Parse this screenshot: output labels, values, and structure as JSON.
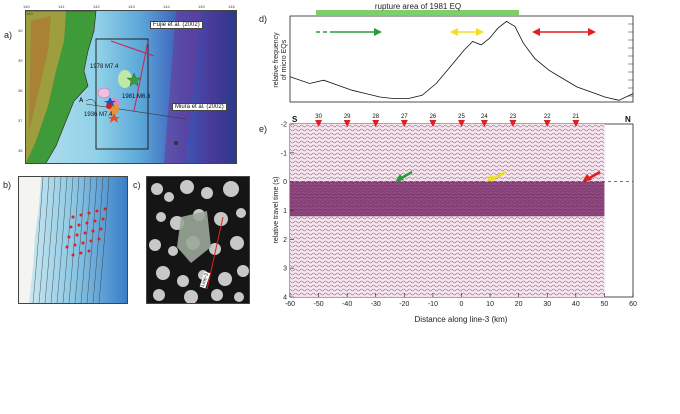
{
  "panels": {
    "a": "a)",
    "b": "b)",
    "c": "c)",
    "d": "d)",
    "e": "e)"
  },
  "map_a": {
    "lon_ticks": [
      "140",
      "141",
      "142",
      "143",
      "144",
      "145",
      "146"
    ],
    "lat_ticks": [
      "40",
      "39",
      "38",
      "37",
      "36"
    ],
    "labels": {
      "fujie": "Fujie et al. (2002)",
      "miura": "Miura et al. (2002)",
      "eq1978": "1978 M7.4",
      "eq1981": "1981 M6.8",
      "eq1936": "1936 M7.4",
      "point_a": "A"
    }
  },
  "map_c": {
    "line_label": "Line-3"
  },
  "panel_d": {
    "rupture_label": "rupture area of 1981 EQ",
    "ylabel_line1": "relative frequency",
    "ylabel_line2": "of micro EQs",
    "arrow_colors": {
      "green": "#2a9a3a",
      "yellow": "#f0e020",
      "red": "#e02020"
    },
    "bar_color": "#7ccf6a"
  },
  "panel_e": {
    "end_left": "S",
    "end_right": "N",
    "ylabel": "relative travel time (s)",
    "xlabel": "Distance along line-3 (km)",
    "y_ticks": [
      "-2",
      "-1",
      "0",
      "1",
      "2",
      "3",
      "4"
    ],
    "x_ticks": [
      "-60",
      "-50",
      "-40",
      "-30",
      "-20",
      "-10",
      "0",
      "10",
      "20",
      "30",
      "40",
      "50",
      "60"
    ],
    "station_numbers": [
      "30",
      "29",
      "28",
      "27",
      "26",
      "25",
      "24",
      "23",
      "22",
      "21"
    ],
    "marker_color": "#e02020",
    "arrow_colors": {
      "green": "#2a9a3a",
      "yellow": "#f0e020",
      "red": "#e02020"
    }
  },
  "chart_data": [
    {
      "type": "line",
      "x": [
        -62,
        -55,
        -50,
        -45,
        -40,
        -35,
        -30,
        -25,
        -20,
        -15,
        -10,
        -5,
        0,
        3,
        6,
        9,
        12,
        15,
        18,
        21,
        25,
        30,
        35,
        40,
        45,
        50,
        55,
        60
      ],
      "series": [
        {
          "values": [
            0.3,
            0.22,
            0.26,
            0.2,
            0.14,
            0.1,
            0.06,
            0.04,
            0.04,
            0.08,
            0.22,
            0.42,
            0.62,
            0.72,
            0.68,
            0.76,
            0.88,
            0.96,
            0.9,
            0.7,
            0.52,
            0.38,
            0.28,
            0.18,
            0.12,
            0.06,
            0.02,
            0.1
          ]
        }
      ],
      "xlim": [
        -62,
        60
      ],
      "ylim": [
        0,
        1
      ],
      "ylabel": "relative frequency of micro EQs",
      "grid": false
    },
    {
      "type": "heatmap",
      "title": "",
      "xlabel": "Distance along line-3 (km)",
      "ylabel": "relative travel time (s)",
      "xlim": [
        -60,
        60
      ],
      "ylim": [
        -2,
        4
      ],
      "x_ticks": [
        -60,
        -50,
        -40,
        -30,
        -20,
        -10,
        0,
        10,
        20,
        30,
        40,
        50,
        60
      ],
      "y_ticks": [
        -2,
        -1,
        0,
        1,
        2,
        3,
        4
      ],
      "stations": [
        {
          "label": "30",
          "x": -50
        },
        {
          "label": "29",
          "x": -40
        },
        {
          "label": "28",
          "x": -30
        },
        {
          "label": "27",
          "x": -20
        },
        {
          "label": "26",
          "x": -10
        },
        {
          "label": "25",
          "x": 0
        },
        {
          "label": "24",
          "x": 8
        },
        {
          "label": "23",
          "x": 18
        },
        {
          "label": "22",
          "x": 30
        },
        {
          "label": "21",
          "x": 40
        }
      ],
      "dashed_line_y": 0,
      "shaded_band": [
        0,
        1.2
      ]
    }
  ]
}
